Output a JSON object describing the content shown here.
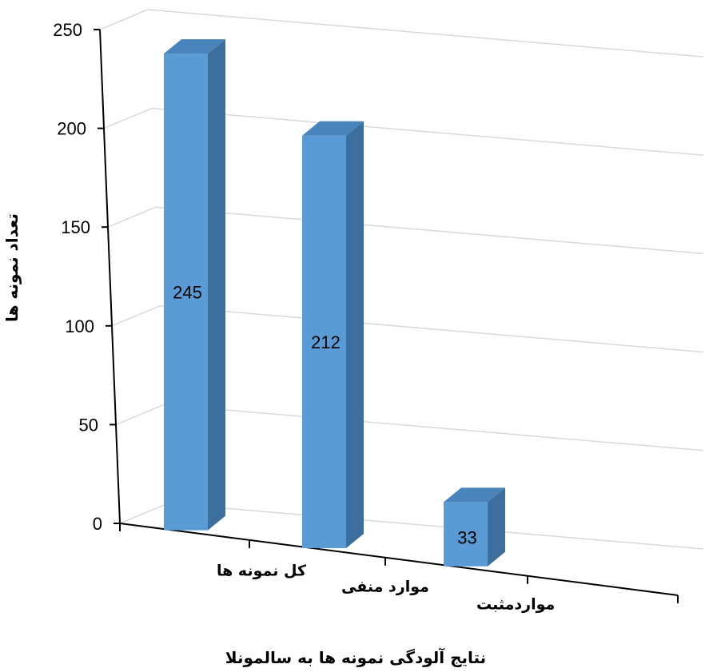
{
  "chart_data": {
    "type": "bar",
    "categories": [
      "کل نمونه ها",
      "موارد منفی",
      "مواردمثبت"
    ],
    "values": [
      245,
      212,
      33
    ],
    "data_labels": [
      "245",
      "212",
      "33"
    ],
    "title": "",
    "xlabel": "نتایج آلودگی نمونه ها به سالمونلا",
    "ylabel": "تعداد نمونه ها",
    "ylim": [
      0,
      250
    ],
    "y_ticks": [
      "0",
      "50",
      "100",
      "150",
      "200",
      "250"
    ],
    "grid": true,
    "legend": "none",
    "three_d": true,
    "colors": {
      "front": "#5b9bd5",
      "side": "#3d6f9e",
      "top": "#4a84bd",
      "grid": "#d9d9d9",
      "axis": "#000000"
    }
  }
}
